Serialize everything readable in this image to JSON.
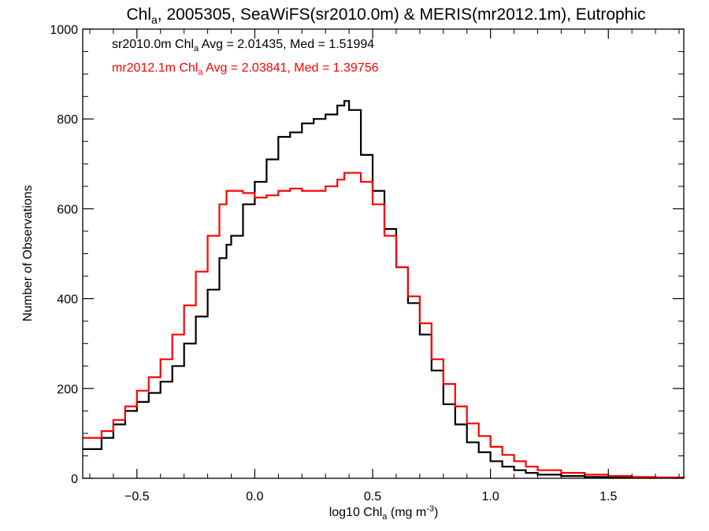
{
  "chart_data": {
    "type": "line",
    "title": {
      "pre": "Chl",
      "sub": "a",
      "post": ", 2005305, SeaWiFS(sr2010.0m) & MERIS(mr2012.1m), Eutrophic"
    },
    "xlabel": {
      "pre": "log10 Chl",
      "sub": "a",
      "post": " (mg m",
      "sup": "-3",
      "end": ")"
    },
    "ylabel": "Number of Observations",
    "xlim": [
      -0.73,
      1.82
    ],
    "ylim": [
      0,
      1000
    ],
    "x_ticks": [
      -0.5,
      0.0,
      0.5,
      1.0,
      1.5
    ],
    "x_tick_labels": [
      "−0.5",
      "0.0",
      "0.5",
      "1.0",
      "1.5"
    ],
    "y_ticks": [
      0,
      200,
      400,
      600,
      800,
      1000
    ],
    "y_tick_labels": [
      "0",
      "200",
      "400",
      "600",
      "800",
      "1000"
    ],
    "annotations": [
      {
        "pre": "sr2010.0m Chl",
        "sub": "a",
        "post": " Avg = 2.01435, Med = 1.51994",
        "color": "#000000"
      },
      {
        "pre": "mr2012.1m Chl",
        "sub": "a",
        "post": " Avg = 2.03841, Med = 1.39756",
        "color": "#ff0000"
      }
    ],
    "x": [
      -0.73,
      -0.65,
      -0.6,
      -0.55,
      -0.5,
      -0.45,
      -0.4,
      -0.35,
      -0.3,
      -0.25,
      -0.2,
      -0.15,
      -0.12,
      -0.1,
      -0.05,
      0.0,
      0.05,
      0.1,
      0.15,
      0.2,
      0.25,
      0.3,
      0.35,
      0.38,
      0.4,
      0.45,
      0.5,
      0.55,
      0.6,
      0.65,
      0.7,
      0.75,
      0.8,
      0.85,
      0.9,
      0.95,
      1.0,
      1.05,
      1.1,
      1.15,
      1.2,
      1.3,
      1.4,
      1.5,
      1.6,
      1.7,
      1.82
    ],
    "series": [
      {
        "name": "sr2010.0m",
        "color": "#000000",
        "values": [
          65,
          90,
          120,
          150,
          170,
          190,
          215,
          250,
          300,
          360,
          420,
          490,
          520,
          540,
          610,
          660,
          710,
          760,
          770,
          790,
          800,
          810,
          830,
          840,
          820,
          720,
          640,
          555,
          470,
          390,
          320,
          240,
          165,
          120,
          80,
          58,
          38,
          26,
          18,
          12,
          8,
          5,
          3,
          2,
          1,
          1,
          0
        ]
      },
      {
        "name": "mr2012.1m",
        "color": "#ff0000",
        "values": [
          90,
          105,
          130,
          160,
          195,
          225,
          265,
          320,
          385,
          460,
          540,
          610,
          640,
          640,
          635,
          625,
          630,
          640,
          645,
          640,
          640,
          650,
          665,
          680,
          680,
          660,
          610,
          540,
          470,
          405,
          345,
          265,
          210,
          160,
          122,
          94,
          70,
          52,
          38,
          26,
          18,
          12,
          8,
          5,
          3,
          2,
          1
        ]
      }
    ]
  }
}
